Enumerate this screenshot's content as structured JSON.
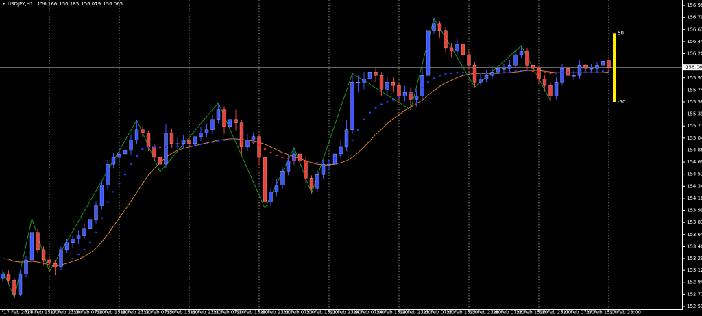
{
  "chart_data": {
    "type": "candlestick",
    "title": "USDJPY,H1",
    "categories": [
      "17 Feb 2026",
      null,
      null,
      null,
      "17 Feb 15:00",
      null,
      null,
      null,
      "17 Feb 23:00",
      null,
      null,
      null,
      "18 Feb 07:00",
      null,
      null,
      null,
      "18 Feb 15:00",
      null,
      null,
      null,
      "18 Feb 23:00",
      null,
      null,
      null,
      "19 Feb 07:00",
      null,
      null,
      null,
      "19 Feb 15:00",
      null,
      null,
      null,
      "19 Feb 23:00",
      null,
      null,
      null,
      "20 Feb 07:00",
      null,
      null,
      null,
      "20 Feb 15:00",
      null,
      null,
      null,
      "20 Feb 23:00",
      null,
      null,
      null,
      "23 Feb 07:00",
      null,
      null,
      null,
      "23 Feb 15:00",
      null,
      null,
      null,
      "23 Feb 23:00",
      null,
      null,
      null,
      "24 Feb 07:00",
      null,
      null,
      null,
      "24 Feb 15:00",
      null,
      null,
      null,
      "24 Feb 23:00",
      null,
      null,
      null,
      "25 Feb 07:00",
      null,
      null,
      null,
      "25 Feb 15:00",
      null,
      null,
      null,
      "25 Feb 23:00",
      null,
      null,
      null,
      "26 Feb 07:00",
      null,
      null,
      null,
      "26 Feb 15:00",
      null,
      null,
      null,
      "26 Feb 23:00",
      null,
      null,
      null,
      "27 Feb 07:00",
      null,
      null,
      null,
      "27 Feb 15:00",
      null,
      null,
      null,
      "27 Feb 23:00"
    ],
    "ohlc": [
      [
        153.0,
        153.12,
        152.95,
        153.07
      ],
      [
        153.07,
        153.12,
        152.92,
        152.97
      ],
      [
        152.97,
        153.0,
        152.72,
        152.77
      ],
      [
        152.77,
        153.12,
        152.74,
        153.07
      ],
      [
        153.07,
        153.32,
        153.02,
        153.27
      ],
      [
        153.27,
        153.87,
        153.22,
        153.67
      ],
      [
        153.67,
        153.72,
        153.37,
        153.42
      ],
      [
        153.42,
        153.47,
        153.2,
        153.27
      ],
      [
        153.27,
        153.32,
        153.1,
        153.22
      ],
      [
        153.22,
        153.27,
        153.05,
        153.17
      ],
      [
        153.17,
        153.47,
        153.12,
        153.42
      ],
      [
        153.42,
        153.57,
        153.37,
        153.52
      ],
      [
        153.52,
        153.62,
        153.45,
        153.57
      ],
      [
        153.57,
        153.7,
        153.5,
        153.62
      ],
      [
        153.62,
        153.8,
        153.57,
        153.72
      ],
      [
        153.72,
        153.92,
        153.67,
        153.86
      ],
      [
        153.86,
        154.12,
        153.8,
        154.06
      ],
      [
        154.06,
        154.42,
        154.0,
        154.36
      ],
      [
        154.36,
        154.72,
        154.3,
        154.66
      ],
      [
        154.66,
        154.82,
        154.6,
        154.76
      ],
      [
        154.76,
        154.88,
        154.7,
        154.81
      ],
      [
        154.81,
        154.92,
        154.75,
        154.86
      ],
      [
        154.86,
        155.08,
        154.8,
        155.01
      ],
      [
        155.01,
        155.3,
        154.95,
        155.16
      ],
      [
        155.16,
        155.22,
        155.05,
        155.11
      ],
      [
        155.11,
        155.15,
        154.85,
        154.91
      ],
      [
        154.91,
        154.95,
        154.7,
        154.76
      ],
      [
        154.76,
        154.8,
        154.55,
        154.66
      ],
      [
        154.66,
        155.25,
        154.6,
        155.11
      ],
      [
        155.11,
        155.18,
        154.9,
        154.96
      ],
      [
        154.96,
        155.05,
        154.88,
        154.96
      ],
      [
        154.96,
        155.08,
        154.9,
        155.01
      ],
      [
        155.01,
        155.06,
        154.9,
        154.96
      ],
      [
        154.96,
        155.12,
        154.9,
        155.06
      ],
      [
        155.06,
        155.2,
        155.0,
        155.11
      ],
      [
        155.11,
        155.25,
        155.05,
        155.16
      ],
      [
        155.16,
        155.38,
        155.1,
        155.31
      ],
      [
        155.31,
        155.55,
        155.25,
        155.45
      ],
      [
        155.45,
        155.5,
        155.1,
        155.21
      ],
      [
        155.21,
        155.4,
        155.15,
        155.31
      ],
      [
        155.31,
        155.45,
        155.15,
        155.26
      ],
      [
        155.26,
        155.3,
        154.8,
        154.91
      ],
      [
        154.91,
        155.1,
        154.85,
        155.01
      ],
      [
        155.01,
        155.12,
        154.95,
        155.06
      ],
      [
        155.06,
        155.1,
        154.65,
        154.76
      ],
      [
        154.76,
        154.8,
        154.02,
        154.11
      ],
      [
        154.11,
        154.32,
        154.05,
        154.26
      ],
      [
        154.26,
        154.45,
        154.2,
        154.36
      ],
      [
        154.36,
        154.62,
        154.3,
        154.56
      ],
      [
        154.56,
        154.8,
        154.5,
        154.71
      ],
      [
        154.71,
        154.9,
        154.65,
        154.81
      ],
      [
        154.81,
        154.86,
        154.62,
        154.71
      ],
      [
        154.71,
        154.76,
        154.38,
        154.46
      ],
      [
        154.46,
        154.5,
        154.24,
        154.31
      ],
      [
        154.31,
        154.58,
        154.26,
        154.51
      ],
      [
        154.51,
        154.72,
        154.45,
        154.66
      ],
      [
        154.66,
        154.72,
        154.58,
        154.66
      ],
      [
        154.66,
        154.88,
        154.6,
        154.81
      ],
      [
        154.81,
        155.0,
        154.75,
        154.91
      ],
      [
        154.91,
        155.3,
        154.85,
        155.16
      ],
      [
        155.16,
        155.98,
        155.1,
        155.85
      ],
      [
        155.85,
        155.95,
        155.7,
        155.85
      ],
      [
        155.85,
        156.0,
        155.75,
        155.9
      ],
      [
        155.9,
        156.08,
        155.85,
        156.0
      ],
      [
        156.0,
        156.05,
        155.85,
        155.95
      ],
      [
        155.95,
        156.0,
        155.65,
        155.75
      ],
      [
        155.75,
        155.92,
        155.68,
        155.85
      ],
      [
        155.85,
        155.92,
        155.7,
        155.8
      ],
      [
        155.8,
        155.85,
        155.55,
        155.65
      ],
      [
        155.65,
        155.8,
        155.58,
        155.7
      ],
      [
        155.7,
        155.78,
        155.45,
        155.6
      ],
      [
        155.6,
        155.75,
        155.5,
        155.65
      ],
      [
        155.65,
        156.05,
        155.58,
        155.95
      ],
      [
        155.95,
        156.7,
        155.9,
        156.6
      ],
      [
        156.6,
        156.78,
        156.55,
        156.7
      ],
      [
        156.7,
        156.74,
        156.5,
        156.6
      ],
      [
        156.6,
        156.65,
        156.28,
        156.35
      ],
      [
        156.35,
        156.42,
        156.22,
        156.3
      ],
      [
        156.3,
        156.48,
        156.25,
        156.4
      ],
      [
        156.4,
        156.45,
        156.18,
        156.25
      ],
      [
        156.25,
        156.3,
        156.02,
        156.1
      ],
      [
        156.1,
        156.15,
        155.78,
        155.85
      ],
      [
        155.85,
        155.98,
        155.8,
        155.9
      ],
      [
        155.9,
        156.02,
        155.85,
        155.95
      ],
      [
        155.95,
        156.08,
        155.9,
        156.0
      ],
      [
        156.0,
        156.12,
        155.95,
        156.05
      ],
      [
        156.05,
        156.12,
        155.98,
        156.05
      ],
      [
        156.05,
        156.18,
        156.0,
        156.1
      ],
      [
        156.1,
        156.32,
        156.05,
        156.25
      ],
      [
        156.25,
        156.38,
        156.2,
        156.3
      ],
      [
        156.3,
        156.35,
        156.02,
        156.1
      ],
      [
        156.1,
        156.15,
        155.98,
        156.05
      ],
      [
        156.05,
        156.1,
        155.82,
        155.9
      ],
      [
        155.9,
        155.95,
        155.72,
        155.8
      ],
      [
        155.8,
        155.85,
        155.58,
        155.65
      ],
      [
        155.65,
        155.92,
        155.6,
        155.85
      ],
      [
        155.85,
        156.12,
        155.8,
        156.05
      ],
      [
        156.05,
        156.1,
        155.88,
        155.95
      ],
      [
        155.95,
        156.02,
        155.88,
        155.95
      ],
      [
        155.95,
        156.18,
        155.9,
        156.1
      ],
      [
        156.1,
        156.12,
        155.98,
        156.05
      ],
      [
        156.05,
        156.12,
        156.0,
        156.05
      ],
      [
        156.05,
        156.15,
        156.0,
        156.1
      ],
      [
        156.1,
        156.2,
        156.06,
        156.16
      ],
      [
        156.166,
        156.185,
        156.019,
        156.065
      ]
    ],
    "up_color": "#3a55ff",
    "down_color": "#e8413c",
    "ma_fast": {
      "up_color": "#2a3cff",
      "down_color": "#ff2020",
      "values": [
        null,
        null,
        null,
        null,
        null,
        null,
        null,
        null,
        null,
        null,
        null,
        null,
        153.29,
        153.35,
        153.42,
        153.52,
        153.67,
        153.88,
        154.11,
        154.26,
        154.38,
        154.51,
        154.66,
        154.78,
        154.88,
        154.91,
        154.91,
        154.9,
        154.91,
        154.92,
        154.92,
        154.93,
        154.93,
        154.94,
        154.95,
        154.96,
        154.98,
        155.0,
        155.01,
        155.02,
        155.02,
        155.0,
        154.99,
        154.98,
        154.94,
        154.88,
        154.83,
        154.79,
        154.76,
        154.74,
        154.72,
        154.71,
        154.69,
        154.68,
        154.68,
        154.69,
        154.71,
        154.75,
        154.79,
        154.86,
        155.01,
        155.16,
        155.31,
        155.41,
        155.48,
        155.53,
        155.57,
        155.6,
        155.63,
        155.66,
        155.69,
        155.72,
        155.78,
        155.85,
        155.91,
        155.95,
        155.97,
        155.98,
        155.99,
        155.99,
        155.99,
        155.98,
        155.98,
        155.98,
        155.98,
        155.99,
        155.99,
        156.0,
        156.01,
        156.02,
        156.02,
        156.01,
        156.0,
        155.99,
        155.98,
        155.98,
        155.99,
        155.99,
        155.99,
        156.0,
        156.0,
        156.0,
        156.0,
        156.01,
        156.02
      ]
    },
    "ma_slow": {
      "color": "#d9822b",
      "values": [
        153.29,
        153.28,
        153.25,
        153.24,
        153.24,
        153.25,
        153.24,
        153.22,
        153.2,
        153.18,
        153.2,
        153.22,
        153.25,
        153.28,
        153.32,
        153.37,
        153.44,
        153.53,
        153.64,
        153.76,
        153.88,
        154.0,
        154.12,
        154.25,
        154.38,
        154.5,
        154.6,
        154.68,
        154.76,
        154.82,
        154.86,
        154.89,
        154.91,
        154.93,
        154.95,
        154.97,
        154.99,
        155.01,
        155.02,
        155.03,
        155.03,
        155.02,
        155.01,
        155.0,
        154.98,
        154.95,
        154.91,
        154.87,
        154.83,
        154.8,
        154.77,
        154.74,
        154.71,
        154.68,
        154.66,
        154.65,
        154.65,
        154.66,
        154.68,
        154.71,
        154.76,
        154.83,
        154.91,
        155.0,
        155.09,
        155.17,
        155.25,
        155.32,
        155.38,
        155.44,
        155.49,
        155.54,
        155.59,
        155.66,
        155.73,
        155.79,
        155.84,
        155.88,
        155.92,
        155.95,
        155.97,
        155.98,
        155.98,
        155.98,
        155.98,
        155.98,
        155.99,
        155.99,
        156.0,
        156.01,
        156.02,
        156.02,
        156.02,
        156.01,
        156.0,
        155.99,
        155.99,
        155.99,
        155.99,
        155.99,
        155.99,
        155.99,
        155.99,
        155.99,
        156.0
      ]
    },
    "zigzag": {
      "color": "#1fa31f",
      "x": [
        0,
        2,
        5,
        8,
        23,
        27,
        37,
        45,
        50,
        53,
        60,
        70,
        74,
        81,
        89,
        94
      ],
      "values": [
        153.12,
        152.72,
        153.87,
        153.1,
        155.3,
        154.55,
        155.55,
        154.02,
        154.9,
        154.24,
        155.98,
        155.45,
        156.78,
        155.78,
        156.38,
        155.58
      ]
    },
    "band": {
      "color": "#ffee00",
      "top": 156.565,
      "bottom": 155.565,
      "top_label": "50",
      "bottom_label": "-50"
    },
    "ylim": [
      152.555,
      157.045
    ],
    "yticks": [
      156.965,
      {
        "value": 156.79,
        "label": "156.790"
      },
      156.615,
      {
        "value": 156.44,
        "label": "156.440"
      },
      156.265,
      155.915,
      {
        "value": 155.74,
        "label": "155.740"
      },
      155.565,
      {
        "value": 155.39,
        "label": "155.390"
      },
      155.215,
      {
        "value": 155.04,
        "label": "155.040"
      },
      154.865,
      {
        "value": 154.69,
        "label": "154.690"
      },
      154.515,
      {
        "value": 154.34,
        "label": "154.340"
      },
      154.165,
      {
        "value": 153.99,
        "label": "153.990"
      },
      153.815,
      {
        "value": 153.64,
        "label": "153.640"
      },
      153.465,
      {
        "value": 153.29,
        "label": "153.290"
      },
      {
        "value": 153.12,
        "label": "153.120"
      },
      152.945,
      {
        "value": 152.77,
        "label": "152.770"
      },
      152.595
    ]
  }
}
